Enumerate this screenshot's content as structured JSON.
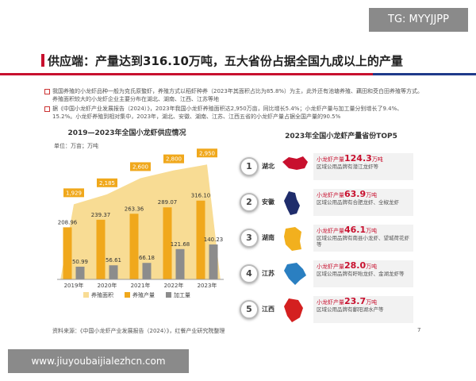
{
  "watermark_top": "TG: MYYJJPP",
  "watermark_bottom": "www.jiuyoubaijialezhcn.com",
  "title": "供应端：产量达到316.10万吨，五大省份占据全国九成以上的产量",
  "bullets": [
    "我国养殖的小龙虾品种一般为克氏原螯虾，养殖方式以稻虾种养（2023年其面积占比为85.8%）为主，此外还有池塘养殖、藕田和茭白田养殖等方式。养殖面积较大的小龙虾企业主要分布在湖北、湖南、江西、江苏等地",
    "据《中国小龙虾产业发展报告（2024）》，2023年我国小龙虾养殖面积达2,950万亩，同比增长5.4%；小龙虾产量与加工量分别增长了9.4%、15.2%。小龙虾养殖到相对集中，2023年，湖北、安徽、湖南、江苏、江西五省的小龙虾产量占据全国产量的90.5%"
  ],
  "chart_data": {
    "type": "bar",
    "title": "2019—2023年全国小龙虾供应情况",
    "unit": "单位：万亩；万吨",
    "categories": [
      "2019年",
      "2020年",
      "2021年",
      "2022年",
      "2023年"
    ],
    "ylim": [
      0,
      500
    ],
    "y2lim": [
      0,
      3200
    ],
    "series": [
      {
        "name": "养殖面积",
        "type": "area",
        "axis": "y2",
        "color": "#f8dc94",
        "label_color": "#f0a81c",
        "values": [
          1929,
          2185,
          2600,
          2800,
          2950
        ],
        "value_labels": [
          "1,929",
          "2,185",
          "2,600",
          "2,800",
          "2,950"
        ]
      },
      {
        "name": "养殖产量",
        "color": "#f0a81c",
        "values": [
          208.96,
          239.37,
          263.36,
          289.07,
          316.1
        ],
        "value_labels": [
          "208.96",
          "239.37",
          "263.36",
          "289.07",
          "316.10"
        ]
      },
      {
        "name": "加工量",
        "color": "#8c8c8c",
        "values": [
          50.99,
          56.61,
          66.18,
          121.68,
          140.23
        ]
      }
    ]
  },
  "top5": {
    "title": "2023年全国小龙虾产量省份TOP5",
    "items": [
      {
        "rank": "1",
        "province": "湖北",
        "label": "小龙虾产量",
        "output": "124.3",
        "unit": "万吨",
        "brand": "区域公用品牌有潜江龙虾等",
        "color": "#c8102e"
      },
      {
        "rank": "2",
        "province": "安徽",
        "label": "小龙虾产量",
        "output": "63.9",
        "unit": "万吨",
        "brand": "区域公用品牌有合肥龙虾、全椒龙虾",
        "color": "#1f2d6b"
      },
      {
        "rank": "3",
        "province": "湖南",
        "label": "小龙虾产量",
        "output": "46.1",
        "unit": "万吨",
        "brand": "区域公用品牌有南县小龙虾、望城荷花虾等",
        "color": "#f2b01e"
      },
      {
        "rank": "4",
        "province": "江苏",
        "label": "小龙虾产量",
        "output": "28.0",
        "unit": "万吨",
        "brand": "区域公用品牌有盱眙龙虾、金湖龙虾等",
        "color": "#2a7fc1"
      },
      {
        "rank": "5",
        "province": "江西",
        "label": "小龙虾产量",
        "output": "23.7",
        "unit": "万吨",
        "brand": "区域公用品牌有鄱阳湖水产等",
        "color": "#d42020"
      }
    ]
  },
  "source": "资料来源：《中国小龙虾产业发展报告（2024）》，红餐产业研究院整理",
  "page_number": "7"
}
